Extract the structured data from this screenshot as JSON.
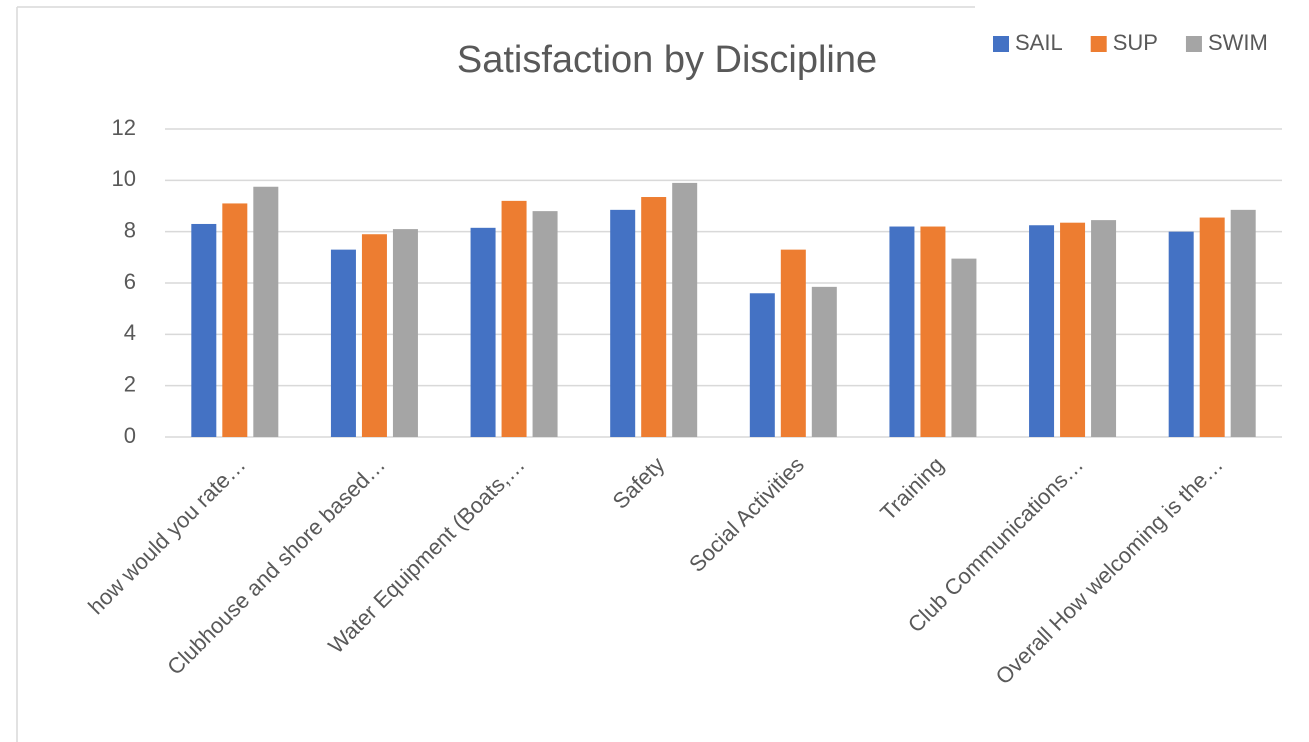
{
  "chart_data": {
    "type": "bar",
    "title": "Satisfaction by Discipline",
    "categories": [
      "how would you rate…",
      "Clubhouse and shore based…",
      "Water Equipment (Boats,…",
      "Safety",
      "Social Activities",
      "Training",
      "Club Communications…",
      "Overall How welcoming is the…"
    ],
    "series": [
      {
        "name": "SAIL",
        "color": "#4472c4",
        "values": [
          8.3,
          7.3,
          8.15,
          8.85,
          5.6,
          8.2,
          8.25,
          8.0
        ]
      },
      {
        "name": "SUP",
        "color": "#ed7d31",
        "values": [
          9.1,
          7.9,
          9.2,
          9.35,
          7.3,
          8.2,
          8.35,
          8.55
        ]
      },
      {
        "name": "SWIM",
        "color": "#a5a5a5",
        "values": [
          9.75,
          8.1,
          8.8,
          9.9,
          5.85,
          6.95,
          8.45,
          8.85
        ]
      }
    ],
    "ylim": [
      0,
      12
    ],
    "yticks": [
      0,
      2,
      4,
      6,
      8,
      10,
      12
    ],
    "grid": true,
    "legend": "top-right"
  }
}
